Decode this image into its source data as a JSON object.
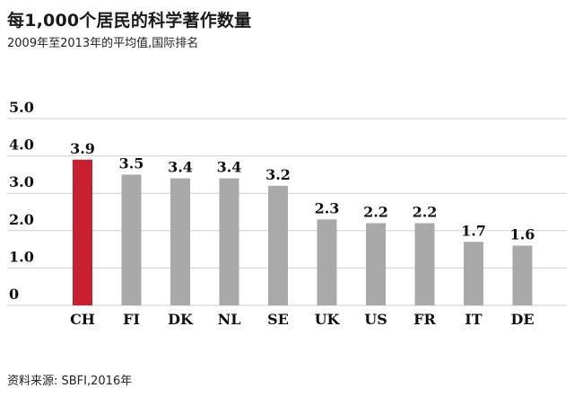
{
  "chart_data": {
    "type": "bar",
    "title": "每1,000个居民的科学著作数量",
    "subtitle": "2009年至2013年的平均值,国际排名",
    "source": "资料来源: SBFI,2016年",
    "categories": [
      "CH",
      "FI",
      "DK",
      "NL",
      "SE",
      "UK",
      "US",
      "FR",
      "IT",
      "DE"
    ],
    "values": [
      3.9,
      3.5,
      3.4,
      3.4,
      3.2,
      2.3,
      2.2,
      2.2,
      1.7,
      1.6
    ],
    "value_labels": [
      "3.9",
      "3.5",
      "3.4",
      "3.4",
      "3.2",
      "2.3",
      "2.2",
      "2.2",
      "1.7",
      "1.6"
    ],
    "ylim": [
      0,
      5
    ],
    "yticks": [
      0,
      1,
      2,
      3,
      4,
      5
    ],
    "ytick_labels": [
      "0",
      "1.0",
      "2.0",
      "3.0",
      "4.0",
      "5.0"
    ],
    "grid": true,
    "colors": {
      "highlight": "#c8202f",
      "default": "#a9a9a9",
      "grid": "#cfcfcf"
    },
    "highlight_index": 0
  }
}
